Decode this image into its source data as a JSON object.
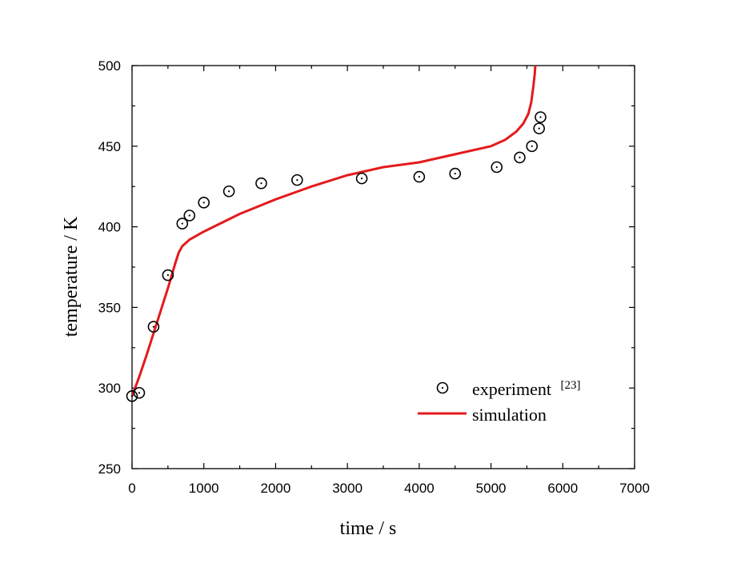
{
  "chart_data": {
    "type": "line",
    "xlabel": "time / s",
    "ylabel": "temperature / K",
    "xlim": [
      0,
      7000
    ],
    "ylim": [
      250,
      500
    ],
    "xticks": [
      0,
      1000,
      2000,
      3000,
      4000,
      5000,
      6000,
      7000
    ],
    "yticks": [
      250,
      300,
      350,
      400,
      450,
      500
    ],
    "x_tick_labels": [
      "0",
      "1000",
      "2000",
      "3000",
      "4000",
      "5000",
      "6000",
      "7000"
    ],
    "y_tick_labels": [
      "250",
      "300",
      "350",
      "400",
      "450",
      "500"
    ],
    "legend_position": "lower-right",
    "grid": false,
    "series": [
      {
        "name": "experiment",
        "name_ref": "[23]",
        "kind": "scatter",
        "marker": "circle-dot",
        "color": "#000000",
        "x": [
          0,
          100,
          300,
          500,
          700,
          800,
          1000,
          1350,
          1800,
          2300,
          3200,
          4000,
          4500,
          5080,
          5400,
          5570,
          5670,
          5690
        ],
        "y": [
          295,
          297,
          338,
          370,
          402,
          407,
          415,
          422,
          427,
          429,
          430,
          431,
          433,
          437,
          443,
          450,
          461,
          468
        ]
      },
      {
        "name": "simulation",
        "kind": "line",
        "color": "#e41a1c",
        "x": [
          0,
          100,
          200,
          300,
          400,
          500,
          600,
          650,
          700,
          750,
          800,
          1000,
          1500,
          2000,
          2500,
          3000,
          3500,
          4000,
          4500,
          5000,
          5200,
          5350,
          5450,
          5520,
          5560,
          5590,
          5610,
          5620,
          5625
        ],
        "y": [
          295,
          307,
          320,
          334,
          348,
          362,
          377,
          384,
          388,
          390,
          392,
          397,
          408,
          417,
          425,
          432,
          437,
          440,
          445,
          450,
          454,
          459,
          464,
          470,
          477,
          487,
          495,
          502,
          510
        ]
      }
    ]
  }
}
